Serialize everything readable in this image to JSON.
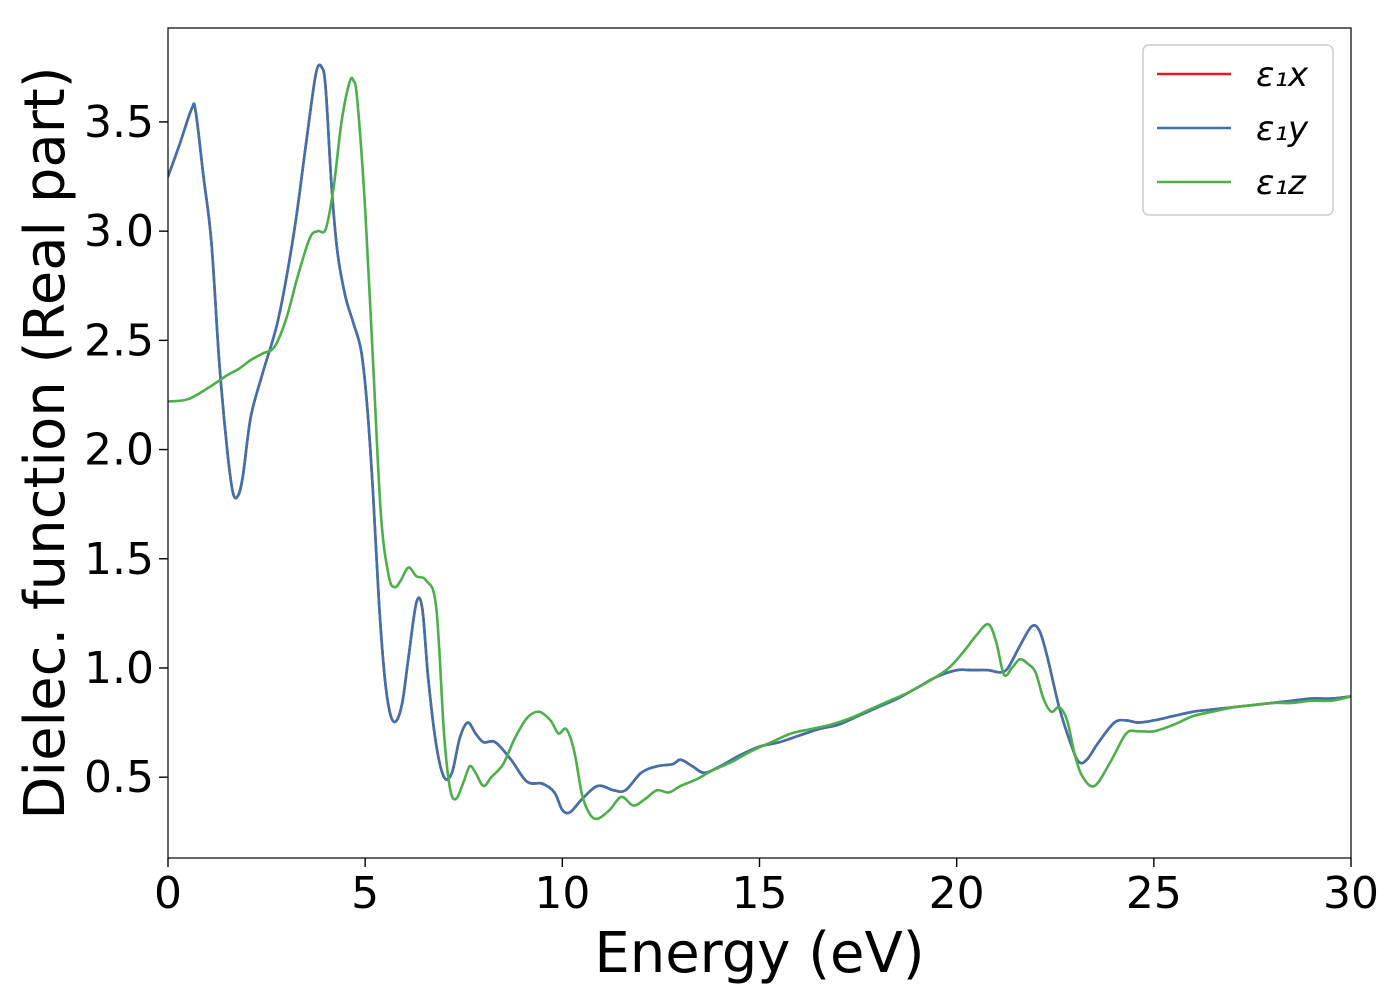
{
  "chart_data": {
    "type": "line",
    "title": "",
    "xlabel": "Energy (eV)",
    "ylabel": "Dielec. function (Real part)",
    "xlim": [
      0,
      30
    ],
    "ylim": [
      0.13,
      3.93
    ],
    "xticks": [
      0,
      5,
      10,
      15,
      20,
      25,
      30
    ],
    "xtick_labels": [
      "0",
      "5",
      "10",
      "15",
      "20",
      "25",
      "30"
    ],
    "yticks": [
      0.5,
      1.0,
      1.5,
      2.0,
      2.5,
      3.0,
      3.5
    ],
    "ytick_labels": [
      "0.5",
      "1.0",
      "1.5",
      "2.0",
      "2.5",
      "3.0",
      "3.5"
    ],
    "grid": false,
    "legend_position": "top-right",
    "series": [
      {
        "name": "ε₁x",
        "color": "#e41a1c",
        "x": [
          0,
          0.3,
          0.6,
          0.7,
          0.9,
          1.1,
          1.3,
          1.5,
          1.65,
          1.78,
          1.9,
          2.1,
          2.4,
          2.8,
          3.2,
          3.5,
          3.75,
          3.9,
          4.0,
          4.15,
          4.3,
          4.5,
          4.7,
          4.9,
          5.05,
          5.2,
          5.35,
          5.5,
          5.65,
          5.8,
          5.95,
          6.1,
          6.3,
          6.45,
          6.6,
          6.8,
          7.0,
          7.2,
          7.4,
          7.6,
          7.8,
          8.0,
          8.3,
          8.7,
          9.1,
          9.5,
          9.8,
          10.0,
          10.2,
          10.5,
          10.9,
          11.3,
          11.6,
          12.0,
          12.4,
          12.8,
          13.0,
          13.3,
          13.6,
          14.0,
          14.5,
          15.0,
          15.5,
          16.0,
          16.5,
          17.0,
          17.5,
          18.0,
          18.5,
          19.0,
          19.5,
          20.0,
          20.4,
          20.8,
          21.1,
          21.3,
          21.6,
          21.9,
          22.1,
          22.3,
          22.6,
          22.9,
          23.1,
          23.3,
          23.6,
          24.0,
          24.3,
          24.6,
          25.0,
          25.5,
          26.0,
          26.5,
          27.0,
          27.5,
          28.0,
          28.5,
          29.0,
          29.5,
          30.0
        ],
        "y": [
          3.25,
          3.4,
          3.56,
          3.55,
          3.25,
          2.95,
          2.4,
          2.0,
          1.8,
          1.79,
          1.88,
          2.15,
          2.35,
          2.6,
          3.0,
          3.4,
          3.72,
          3.75,
          3.65,
          3.2,
          2.9,
          2.7,
          2.58,
          2.45,
          2.2,
          1.8,
          1.3,
          0.95,
          0.78,
          0.76,
          0.85,
          1.05,
          1.3,
          1.27,
          0.95,
          0.65,
          0.5,
          0.52,
          0.68,
          0.75,
          0.7,
          0.66,
          0.66,
          0.58,
          0.48,
          0.47,
          0.43,
          0.35,
          0.34,
          0.4,
          0.46,
          0.44,
          0.44,
          0.52,
          0.55,
          0.56,
          0.58,
          0.55,
          0.52,
          0.55,
          0.6,
          0.64,
          0.66,
          0.69,
          0.72,
          0.74,
          0.78,
          0.82,
          0.86,
          0.91,
          0.96,
          0.99,
          0.99,
          0.99,
          0.98,
          1.0,
          1.1,
          1.19,
          1.17,
          1.05,
          0.82,
          0.65,
          0.57,
          0.58,
          0.66,
          0.75,
          0.76,
          0.75,
          0.76,
          0.78,
          0.8,
          0.81,
          0.82,
          0.83,
          0.84,
          0.85,
          0.86,
          0.86,
          0.87
        ]
      },
      {
        "name": "ε₁y",
        "color": "#3f72ad",
        "x": [
          0,
          0.3,
          0.6,
          0.7,
          0.9,
          1.1,
          1.3,
          1.5,
          1.65,
          1.78,
          1.9,
          2.1,
          2.4,
          2.8,
          3.2,
          3.5,
          3.75,
          3.9,
          4.0,
          4.15,
          4.3,
          4.5,
          4.7,
          4.9,
          5.05,
          5.2,
          5.35,
          5.5,
          5.65,
          5.8,
          5.95,
          6.1,
          6.3,
          6.45,
          6.6,
          6.8,
          7.0,
          7.2,
          7.4,
          7.6,
          7.8,
          8.0,
          8.3,
          8.7,
          9.1,
          9.5,
          9.8,
          10.0,
          10.2,
          10.5,
          10.9,
          11.3,
          11.6,
          12.0,
          12.4,
          12.8,
          13.0,
          13.3,
          13.6,
          14.0,
          14.5,
          15.0,
          15.5,
          16.0,
          16.5,
          17.0,
          17.5,
          18.0,
          18.5,
          19.0,
          19.5,
          20.0,
          20.4,
          20.8,
          21.1,
          21.3,
          21.6,
          21.9,
          22.1,
          22.3,
          22.6,
          22.9,
          23.1,
          23.3,
          23.6,
          24.0,
          24.3,
          24.6,
          25.0,
          25.5,
          26.0,
          26.5,
          27.0,
          27.5,
          28.0,
          28.5,
          29.0,
          29.5,
          30.0
        ],
        "y": [
          3.25,
          3.4,
          3.56,
          3.55,
          3.25,
          2.95,
          2.4,
          2.0,
          1.8,
          1.79,
          1.88,
          2.15,
          2.35,
          2.6,
          3.0,
          3.4,
          3.72,
          3.75,
          3.65,
          3.2,
          2.9,
          2.7,
          2.58,
          2.45,
          2.2,
          1.8,
          1.3,
          0.95,
          0.78,
          0.76,
          0.85,
          1.05,
          1.3,
          1.27,
          0.95,
          0.65,
          0.5,
          0.52,
          0.68,
          0.75,
          0.7,
          0.66,
          0.66,
          0.58,
          0.48,
          0.47,
          0.43,
          0.35,
          0.34,
          0.4,
          0.46,
          0.44,
          0.44,
          0.52,
          0.55,
          0.56,
          0.58,
          0.55,
          0.52,
          0.55,
          0.6,
          0.64,
          0.66,
          0.69,
          0.72,
          0.74,
          0.78,
          0.82,
          0.86,
          0.91,
          0.96,
          0.99,
          0.99,
          0.99,
          0.98,
          1.0,
          1.1,
          1.19,
          1.17,
          1.05,
          0.82,
          0.65,
          0.57,
          0.58,
          0.66,
          0.75,
          0.76,
          0.75,
          0.76,
          0.78,
          0.8,
          0.81,
          0.82,
          0.83,
          0.84,
          0.85,
          0.86,
          0.86,
          0.87
        ]
      },
      {
        "name": "ε₁z",
        "color": "#4daf4a",
        "x": [
          0,
          0.5,
          1.0,
          1.5,
          1.8,
          2.1,
          2.4,
          2.7,
          3.0,
          3.3,
          3.6,
          3.8,
          4.0,
          4.2,
          4.4,
          4.6,
          4.7,
          4.8,
          5.0,
          5.2,
          5.4,
          5.6,
          5.75,
          5.9,
          6.1,
          6.3,
          6.55,
          6.8,
          7.0,
          7.15,
          7.3,
          7.5,
          7.65,
          7.8,
          8.0,
          8.2,
          8.5,
          8.8,
          9.1,
          9.4,
          9.7,
          9.9,
          10.1,
          10.3,
          10.5,
          10.7,
          10.9,
          11.2,
          11.5,
          11.8,
          12.1,
          12.4,
          12.7,
          13.0,
          13.4,
          13.8,
          14.3,
          14.8,
          15.3,
          15.8,
          16.3,
          16.8,
          17.3,
          17.8,
          18.3,
          18.8,
          19.3,
          19.8,
          20.2,
          20.5,
          20.8,
          21.0,
          21.2,
          21.4,
          21.6,
          21.8,
          22.0,
          22.2,
          22.4,
          22.6,
          22.8,
          23.0,
          23.2,
          23.5,
          23.9,
          24.3,
          24.6,
          25.0,
          25.5,
          26.0,
          26.5,
          27.0,
          27.5,
          28.0,
          28.5,
          29.0,
          29.5,
          30.0
        ],
        "y": [
          2.22,
          2.23,
          2.28,
          2.34,
          2.37,
          2.41,
          2.44,
          2.47,
          2.6,
          2.8,
          2.97,
          3.0,
          3.01,
          3.2,
          3.5,
          3.68,
          3.69,
          3.6,
          3.1,
          2.4,
          1.7,
          1.42,
          1.37,
          1.4,
          1.46,
          1.42,
          1.4,
          1.28,
          0.7,
          0.45,
          0.4,
          0.48,
          0.55,
          0.52,
          0.46,
          0.5,
          0.56,
          0.68,
          0.77,
          0.8,
          0.76,
          0.7,
          0.72,
          0.62,
          0.42,
          0.33,
          0.31,
          0.35,
          0.41,
          0.37,
          0.4,
          0.44,
          0.43,
          0.46,
          0.49,
          0.53,
          0.57,
          0.62,
          0.66,
          0.7,
          0.72,
          0.74,
          0.77,
          0.81,
          0.85,
          0.89,
          0.94,
          1.0,
          1.08,
          1.15,
          1.2,
          1.12,
          0.97,
          1.0,
          1.04,
          1.02,
          0.98,
          0.86,
          0.8,
          0.82,
          0.76,
          0.6,
          0.5,
          0.46,
          0.57,
          0.7,
          0.71,
          0.71,
          0.74,
          0.78,
          0.8,
          0.82,
          0.83,
          0.84,
          0.84,
          0.85,
          0.85,
          0.87
        ]
      }
    ]
  }
}
